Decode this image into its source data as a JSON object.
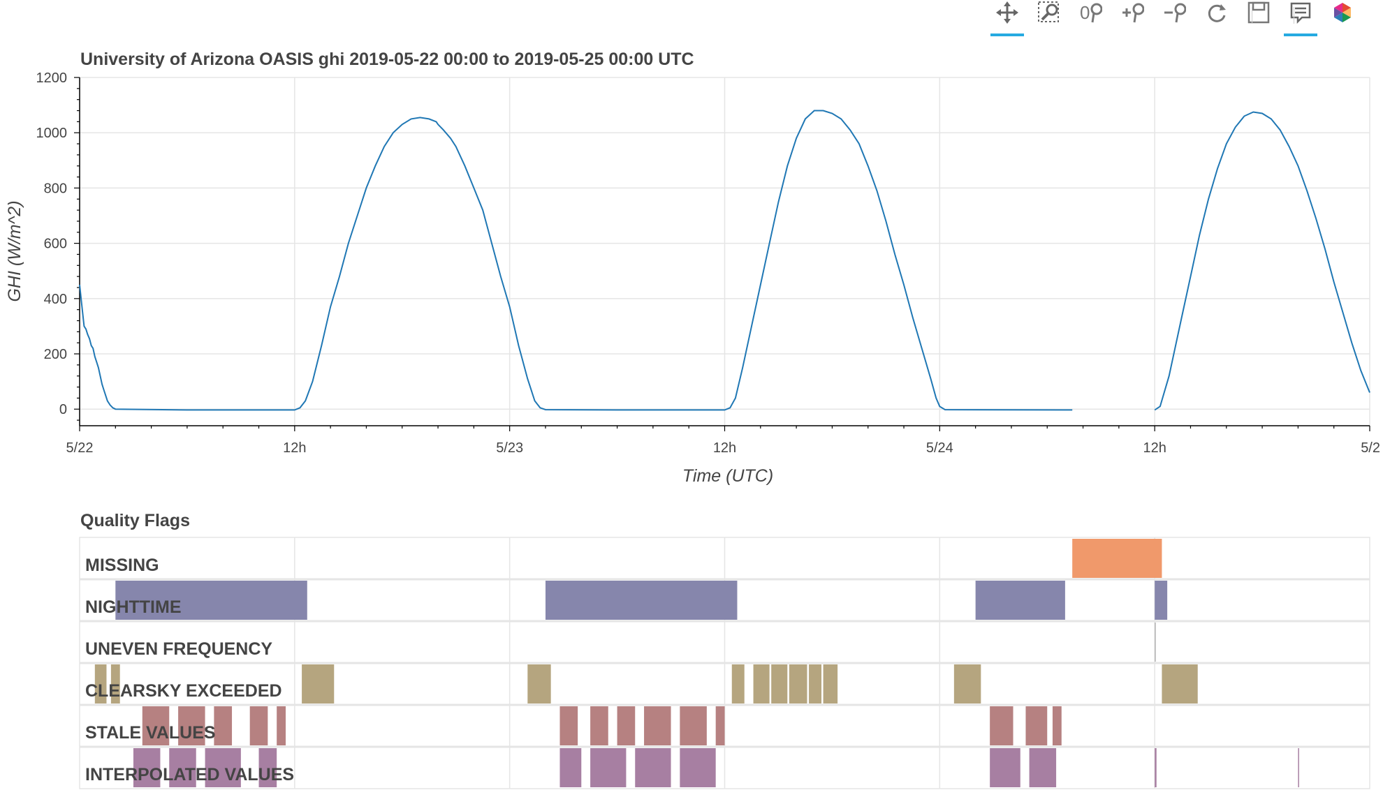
{
  "toolbar": {
    "tools": [
      {
        "name": "pan-tool-icon",
        "active": true
      },
      {
        "name": "box-zoom-tool-icon",
        "active": false
      },
      {
        "name": "reset-zoom-tool-icon",
        "active": false
      },
      {
        "name": "zoom-in-tool-icon",
        "active": false
      },
      {
        "name": "zoom-out-tool-icon",
        "active": false
      },
      {
        "name": "reset-tool-icon",
        "active": false
      },
      {
        "name": "save-tool-icon",
        "active": false
      },
      {
        "name": "hover-tool-icon",
        "active": true
      },
      {
        "name": "bokeh-logo-icon",
        "active": false
      }
    ],
    "accent": "#26aae1"
  },
  "chart_data": [
    {
      "type": "line",
      "title": "University of Arizona OASIS ghi 2019-05-22 00:00 to 2019-05-25 00:00 UTC",
      "xlabel": "Time (UTC)",
      "ylabel": "GHI (W/m^2)",
      "xlim": [
        "2019-05-22 00:00",
        "2019-05-25 00:00"
      ],
      "ylim": [
        -60,
        1200
      ],
      "x_ticks": [
        "5/22",
        "12h",
        "5/23",
        "12h",
        "5/24",
        "12h",
        "5/2"
      ],
      "y_ticks": [
        0,
        200,
        400,
        600,
        800,
        1000,
        1200
      ],
      "grid": true,
      "line_color": "#1f77b4",
      "series": [
        {
          "x_unit": "hours since 2019-05-22 00:00 UTC",
          "points": [
            [
              0.0,
              450
            ],
            [
              0.08,
              400
            ],
            [
              0.15,
              360
            ],
            [
              0.25,
              300
            ],
            [
              0.35,
              290
            ],
            [
              0.45,
              270
            ],
            [
              0.55,
              255
            ],
            [
              0.65,
              230
            ],
            [
              0.75,
              220
            ],
            [
              0.85,
              190
            ],
            [
              0.95,
              170
            ],
            [
              1.05,
              150
            ],
            [
              1.15,
              120
            ],
            [
              1.25,
              90
            ],
            [
              1.35,
              70
            ],
            [
              1.45,
              50
            ],
            [
              1.55,
              30
            ],
            [
              1.7,
              15
            ],
            [
              1.85,
              5
            ],
            [
              2.0,
              0
            ],
            [
              6.0,
              -3
            ],
            [
              12.0,
              -3
            ],
            [
              12.3,
              5
            ],
            [
              12.6,
              30
            ],
            [
              13.0,
              100
            ],
            [
              13.5,
              230
            ],
            [
              14.0,
              370
            ],
            [
              14.5,
              480
            ],
            [
              15.0,
              600
            ],
            [
              15.5,
              700
            ],
            [
              16.0,
              800
            ],
            [
              16.5,
              880
            ],
            [
              17.0,
              950
            ],
            [
              17.5,
              1000
            ],
            [
              18.0,
              1030
            ],
            [
              18.5,
              1050
            ],
            [
              19.0,
              1055
            ],
            [
              19.5,
              1050
            ],
            [
              19.9,
              1040
            ],
            [
              20.0,
              1030
            ],
            [
              20.3,
              1010
            ],
            [
              20.7,
              980
            ],
            [
              21.0,
              950
            ],
            [
              21.5,
              880
            ],
            [
              22.0,
              800
            ],
            [
              22.5,
              720
            ],
            [
              23.0,
              600
            ],
            [
              23.5,
              480
            ],
            [
              24.0,
              370
            ],
            [
              24.5,
              230
            ],
            [
              25.0,
              110
            ],
            [
              25.4,
              30
            ],
            [
              25.7,
              5
            ],
            [
              26.0,
              -2
            ],
            [
              30.0,
              -3
            ],
            [
              36.0,
              -3
            ],
            [
              36.3,
              5
            ],
            [
              36.6,
              40
            ],
            [
              37.0,
              150
            ],
            [
              37.5,
              300
            ],
            [
              38.0,
              450
            ],
            [
              38.5,
              600
            ],
            [
              39.0,
              750
            ],
            [
              39.5,
              880
            ],
            [
              40.0,
              980
            ],
            [
              40.5,
              1050
            ],
            [
              41.0,
              1080
            ],
            [
              41.5,
              1080
            ],
            [
              42.0,
              1070
            ],
            [
              42.5,
              1050
            ],
            [
              43.0,
              1010
            ],
            [
              43.5,
              960
            ],
            [
              44.0,
              880
            ],
            [
              44.5,
              790
            ],
            [
              45.0,
              680
            ],
            [
              45.5,
              560
            ],
            [
              46.0,
              450
            ],
            [
              46.5,
              330
            ],
            [
              47.0,
              220
            ],
            [
              47.5,
              110
            ],
            [
              47.8,
              40
            ],
            [
              48.0,
              10
            ],
            [
              48.3,
              -2
            ],
            [
              55.4,
              -3
            ],
            [
              55.4,
              null
            ],
            [
              59.99,
              null
            ],
            [
              60.0,
              -3
            ],
            [
              60.3,
              10
            ],
            [
              60.8,
              120
            ],
            [
              61.5,
              330
            ],
            [
              62.0,
              480
            ],
            [
              62.5,
              630
            ],
            [
              63.0,
              760
            ],
            [
              63.5,
              870
            ],
            [
              64.0,
              960
            ],
            [
              64.5,
              1020
            ],
            [
              65.0,
              1060
            ],
            [
              65.5,
              1075
            ],
            [
              66.0,
              1070
            ],
            [
              66.5,
              1050
            ],
            [
              67.0,
              1010
            ],
            [
              67.5,
              950
            ],
            [
              68.0,
              880
            ],
            [
              68.5,
              790
            ],
            [
              69.0,
              690
            ],
            [
              69.5,
              580
            ],
            [
              70.0,
              460
            ],
            [
              70.5,
              350
            ],
            [
              71.0,
              240
            ],
            [
              71.5,
              140
            ],
            [
              72.0,
              60
            ]
          ]
        }
      ]
    },
    {
      "type": "heatmap",
      "title": "Quality Flags",
      "x_unit": "hours since 2019-05-22 00:00 UTC",
      "rows": [
        {
          "label": "MISSING",
          "color": "#f0996b",
          "intervals": [
            [
              55.4,
              60.4
            ]
          ]
        },
        {
          "label": "NIGHTTIME",
          "color": "#8686ac",
          "intervals": [
            [
              2.0,
              12.7
            ],
            [
              26.0,
              36.7
            ],
            [
              50.0,
              55.0
            ],
            [
              60.0,
              60.7
            ]
          ]
        },
        {
          "label": "UNEVEN FREQUENCY",
          "color": "#b0b0b0",
          "intervals": [
            [
              60.0,
              60.05
            ]
          ]
        },
        {
          "label": "CLEARSKY EXCEEDED",
          "color": "#b5a57f",
          "intervals": [
            [
              0.85,
              1.5
            ],
            [
              1.75,
              2.25
            ],
            [
              12.4,
              14.2
            ],
            [
              25.0,
              26.3
            ],
            [
              36.4,
              37.1
            ],
            [
              37.6,
              38.5
            ],
            [
              38.6,
              39.5
            ],
            [
              39.6,
              40.6
            ],
            [
              40.7,
              41.4
            ],
            [
              41.5,
              42.3
            ],
            [
              48.8,
              50.3
            ],
            [
              60.4,
              62.4
            ]
          ]
        },
        {
          "label": "STALE VALUES",
          "color": "#b68181",
          "intervals": [
            [
              3.5,
              5.0
            ],
            [
              5.5,
              7.0
            ],
            [
              7.5,
              8.5
            ],
            [
              9.5,
              10.5
            ],
            [
              11.0,
              11.5
            ],
            [
              26.8,
              27.8
            ],
            [
              28.5,
              29.5
            ],
            [
              30.0,
              31.0
            ],
            [
              31.5,
              33.0
            ],
            [
              33.5,
              35.0
            ],
            [
              35.5,
              36.0
            ],
            [
              50.8,
              52.1
            ],
            [
              52.8,
              54.0
            ],
            [
              54.3,
              54.8
            ]
          ]
        },
        {
          "label": "INTERPOLATED VALUES",
          "color": "#a77fa2",
          "intervals": [
            [
              3.0,
              4.5
            ],
            [
              5.0,
              6.5
            ],
            [
              7.0,
              9.0
            ],
            [
              10.0,
              11.0
            ],
            [
              26.8,
              28.0
            ],
            [
              28.5,
              30.5
            ],
            [
              31.0,
              33.0
            ],
            [
              33.5,
              35.5
            ],
            [
              50.8,
              52.5
            ],
            [
              53.0,
              54.5
            ],
            [
              60.0,
              60.1
            ],
            [
              68.0,
              68.05
            ]
          ]
        }
      ]
    }
  ]
}
